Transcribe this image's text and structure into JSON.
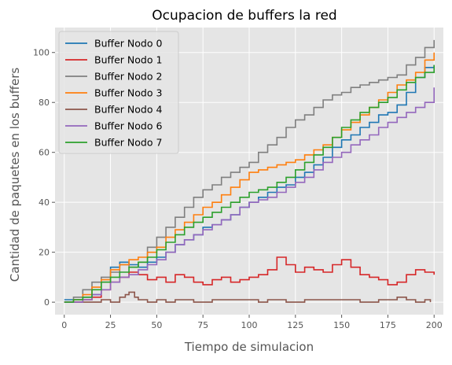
{
  "chart_data": {
    "type": "line",
    "title": "Ocupacion de buffers la red",
    "xlabel": "Tiempo de simulacion",
    "ylabel": "Cantidad de paquetes en los buffers",
    "xlim": [
      -5,
      205
    ],
    "ylim": [
      -5,
      110
    ],
    "xticks": [
      0,
      25,
      50,
      75,
      100,
      125,
      150,
      175,
      200
    ],
    "yticks": [
      0,
      20,
      40,
      60,
      80,
      100
    ],
    "grid": true,
    "legend_position": "upper-left",
    "series": [
      {
        "name": "Buffer Nodo 0",
        "color": "#1f77b4",
        "x": [
          0,
          10,
          15,
          20,
          25,
          30,
          35,
          40,
          45,
          50,
          55,
          60,
          65,
          70,
          75,
          80,
          85,
          90,
          95,
          100,
          105,
          110,
          115,
          120,
          125,
          130,
          135,
          140,
          145,
          150,
          155,
          160,
          165,
          170,
          175,
          180,
          185,
          190,
          195,
          200
        ],
        "y": [
          1,
          2,
          3,
          8,
          14,
          16,
          15,
          14,
          16,
          18,
          20,
          23,
          25,
          27,
          30,
          31,
          33,
          35,
          38,
          40,
          42,
          44,
          46,
          47,
          50,
          52,
          55,
          58,
          62,
          65,
          67,
          70,
          72,
          75,
          76,
          79,
          84,
          90,
          94,
          95
        ]
      },
      {
        "name": "Buffer Nodo 1",
        "color": "#d62728",
        "x": [
          0,
          5,
          10,
          15,
          20,
          25,
          30,
          35,
          40,
          45,
          50,
          55,
          60,
          65,
          70,
          75,
          80,
          85,
          90,
          95,
          100,
          105,
          110,
          115,
          120,
          125,
          130,
          135,
          140,
          145,
          150,
          155,
          160,
          165,
          170,
          175,
          180,
          185,
          190,
          195,
          200
        ],
        "y": [
          0,
          0,
          1,
          2,
          5,
          8,
          10,
          12,
          11,
          9,
          10,
          8,
          11,
          10,
          8,
          7,
          9,
          10,
          8,
          9,
          10,
          11,
          13,
          18,
          15,
          12,
          14,
          13,
          12,
          15,
          17,
          14,
          11,
          10,
          9,
          7,
          8,
          11,
          13,
          12,
          11
        ]
      },
      {
        "name": "Buffer Nodo 2",
        "color": "#7f7f7f",
        "x": [
          0,
          5,
          10,
          15,
          20,
          25,
          30,
          35,
          40,
          45,
          50,
          55,
          60,
          65,
          70,
          75,
          80,
          85,
          90,
          95,
          100,
          105,
          110,
          115,
          120,
          125,
          130,
          135,
          140,
          145,
          150,
          155,
          160,
          165,
          170,
          175,
          180,
          185,
          190,
          195,
          200
        ],
        "y": [
          0,
          2,
          5,
          8,
          10,
          12,
          15,
          14,
          16,
          22,
          26,
          30,
          34,
          38,
          42,
          45,
          47,
          50,
          52,
          54,
          56,
          60,
          63,
          66,
          70,
          73,
          75,
          78,
          81,
          83,
          84,
          86,
          87,
          88,
          89,
          90,
          91,
          95,
          98,
          102,
          105
        ]
      },
      {
        "name": "Buffer Nodo 3",
        "color": "#ff7f0e",
        "x": [
          0,
          5,
          10,
          15,
          20,
          25,
          30,
          35,
          40,
          45,
          50,
          55,
          60,
          65,
          70,
          75,
          80,
          85,
          90,
          95,
          100,
          105,
          110,
          115,
          120,
          125,
          130,
          135,
          140,
          145,
          150,
          155,
          160,
          165,
          170,
          175,
          180,
          185,
          190,
          195,
          200
        ],
        "y": [
          0,
          1,
          3,
          6,
          9,
          13,
          15,
          17,
          18,
          20,
          22,
          26,
          29,
          32,
          35,
          38,
          40,
          43,
          46,
          49,
          52,
          53,
          54,
          55,
          56,
          57,
          59,
          61,
          63,
          66,
          69,
          72,
          75,
          78,
          81,
          84,
          87,
          89,
          92,
          97,
          100
        ]
      },
      {
        "name": "Buffer Nodo 4",
        "color": "#8c564b",
        "x": [
          0,
          10,
          20,
          25,
          30,
          33,
          35,
          38,
          40,
          45,
          50,
          55,
          60,
          70,
          80,
          90,
          100,
          105,
          110,
          115,
          120,
          130,
          140,
          150,
          160,
          170,
          175,
          180,
          185,
          190,
          195,
          198
        ],
        "y": [
          0,
          0,
          1,
          0,
          2,
          3,
          4,
          2,
          1,
          0,
          1,
          0,
          1,
          0,
          1,
          1,
          1,
          0,
          1,
          1,
          0,
          1,
          1,
          1,
          0,
          1,
          1,
          2,
          1,
          0,
          1,
          0
        ]
      },
      {
        "name": "Buffer Nodo 6",
        "color": "#9467bd",
        "x": [
          0,
          5,
          10,
          15,
          20,
          25,
          30,
          35,
          40,
          45,
          50,
          55,
          60,
          65,
          70,
          75,
          80,
          85,
          90,
          95,
          100,
          105,
          110,
          115,
          120,
          125,
          130,
          135,
          140,
          145,
          150,
          155,
          160,
          165,
          170,
          175,
          180,
          185,
          190,
          195,
          200
        ],
        "y": [
          0,
          0,
          1,
          3,
          5,
          8,
          10,
          11,
          13,
          15,
          17,
          20,
          23,
          25,
          27,
          29,
          31,
          33,
          35,
          38,
          40,
          41,
          42,
          44,
          46,
          48,
          50,
          53,
          56,
          58,
          60,
          63,
          65,
          67,
          70,
          72,
          74,
          76,
          78,
          80,
          86
        ]
      },
      {
        "name": "Buffer Nodo 7",
        "color": "#2ca02c",
        "x": [
          0,
          5,
          10,
          15,
          20,
          25,
          30,
          35,
          40,
          45,
          50,
          55,
          60,
          65,
          70,
          75,
          80,
          85,
          90,
          95,
          100,
          105,
          110,
          115,
          120,
          125,
          130,
          135,
          140,
          145,
          150,
          155,
          160,
          165,
          170,
          175,
          180,
          185,
          190,
          195,
          200
        ],
        "y": [
          0,
          1,
          2,
          5,
          8,
          10,
          12,
          14,
          16,
          18,
          21,
          24,
          27,
          30,
          32,
          34,
          36,
          38,
          40,
          42,
          44,
          45,
          46,
          48,
          50,
          53,
          56,
          59,
          62,
          66,
          70,
          73,
          76,
          78,
          80,
          82,
          85,
          88,
          90,
          92,
          95
        ]
      }
    ]
  }
}
